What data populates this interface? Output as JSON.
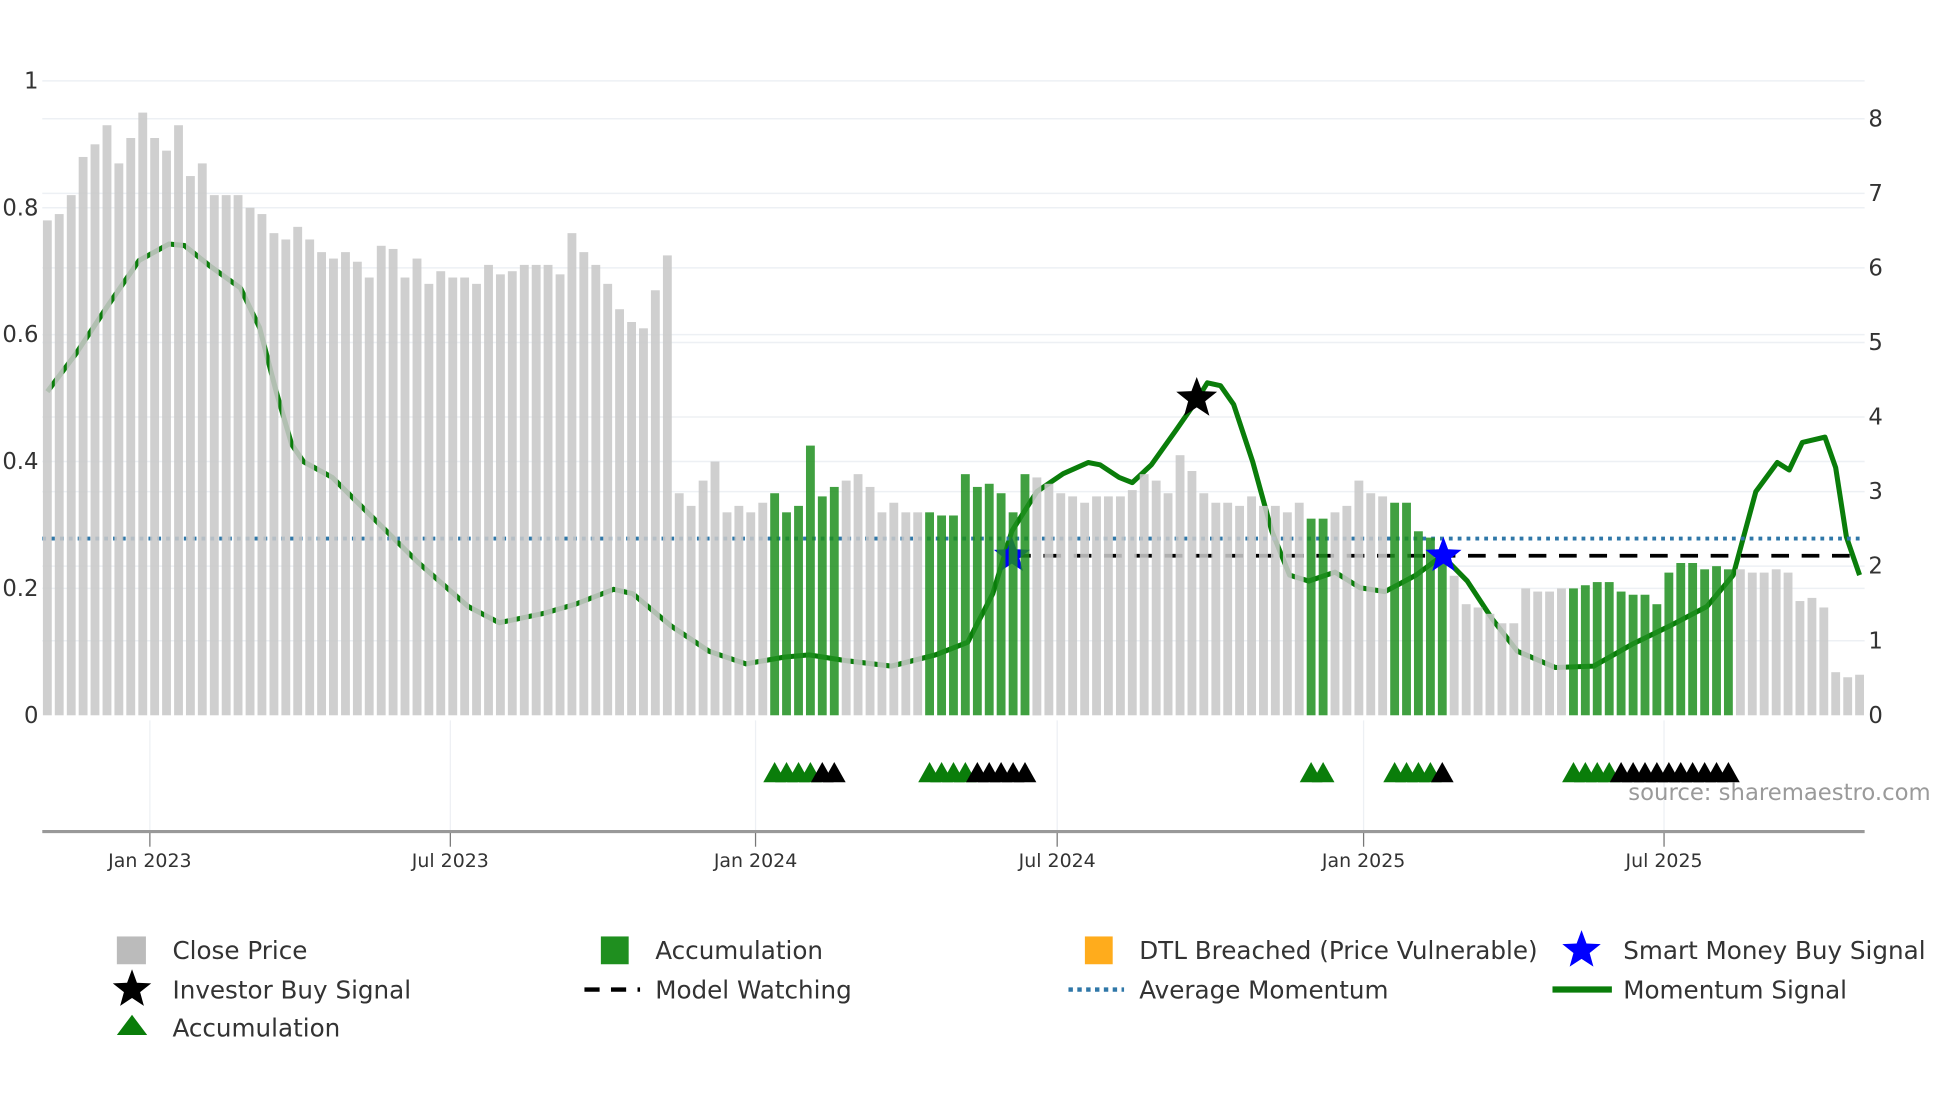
{
  "chart_data": {
    "type": "bar",
    "title": "",
    "colors": {
      "close_price": "#c8c8c8",
      "accumulation_bar": "#1f8f1f",
      "dtl_breached": "#ffac1c",
      "momentum": "#0a7d0a",
      "average_momentum": "#2f77a8",
      "model_watching": "#000000",
      "smart_money_star": "#0000ff",
      "investor_star": "#000000",
      "accumulation_triangle": "#0a7d0a",
      "triangle_secondary": "#000000",
      "grid": "#edf0f4",
      "axis": "#999999"
    },
    "left_axis": {
      "range": [
        0,
        1
      ],
      "ticks": [
        0,
        0.2,
        0.4,
        0.6,
        0.8,
        1
      ],
      "tick_labels": [
        "0",
        "0.2",
        "0.4",
        "0.6",
        "0.8",
        "1"
      ]
    },
    "right_axis": {
      "range": [
        0,
        8
      ],
      "ticks": [
        0,
        1,
        2,
        3,
        4,
        5,
        6,
        7,
        8
      ],
      "tick_labels": [
        "0",
        "1",
        "2",
        "3",
        "4",
        "5",
        "6",
        "7",
        "8"
      ]
    },
    "x_axis": {
      "unit": "week index",
      "tick_weeks": [
        8.6,
        33.8,
        59.4,
        84.7,
        110.4,
        135.6
      ],
      "tick_labels": [
        "Jan 2023",
        "Jul 2023",
        "Jan 2024",
        "Jul 2024",
        "Jan 2025",
        "Jul 2025"
      ]
    },
    "close_price": [
      0.78,
      0.79,
      0.82,
      0.88,
      0.9,
      0.93,
      0.87,
      0.91,
      0.95,
      0.91,
      0.89,
      0.93,
      0.85,
      0.87,
      0.82,
      0.82,
      0.82,
      0.8,
      0.79,
      0.76,
      0.75,
      0.77,
      0.75,
      0.73,
      0.72,
      0.73,
      0.715,
      0.69,
      0.74,
      0.735,
      0.69,
      0.72,
      0.68,
      0.7,
      0.69,
      0.69,
      0.68,
      0.71,
      0.695,
      0.7,
      0.71,
      0.71,
      0.71,
      0.695,
      0.76,
      0.73,
      0.71,
      0.68,
      0.64,
      0.62,
      0.61,
      0.67,
      0.725,
      0.35,
      0.33,
      0.37,
      0.4,
      0.32,
      0.33,
      0.32,
      0.335,
      0.35,
      0.32,
      0.33,
      0.425,
      0.345,
      0.36,
      0.37,
      0.38,
      0.36,
      0.32,
      0.335,
      0.32,
      0.32,
      0.32,
      0.315,
      0.315,
      0.38,
      0.36,
      0.365,
      0.35,
      0.32,
      0.38,
      0.375,
      0.365,
      0.35,
      0.345,
      0.335,
      0.345,
      0.345,
      0.345,
      0.355,
      0.38,
      0.37,
      0.35,
      0.41,
      0.385,
      0.35,
      0.335,
      0.335,
      0.33,
      0.345,
      0.33,
      0.33,
      0.32,
      0.335,
      0.31,
      0.31,
      0.32,
      0.33,
      0.37,
      0.35,
      0.345,
      0.335,
      0.335,
      0.29,
      0.28,
      0.26,
      0.22,
      0.175,
      0.17,
      0.16,
      0.145,
      0.145,
      0.2,
      0.195,
      0.195,
      0.2,
      0.2,
      0.205,
      0.21,
      0.21,
      0.195,
      0.19,
      0.19,
      0.175,
      0.225,
      0.24,
      0.24,
      0.23,
      0.235,
      0.23,
      0.23,
      0.225,
      0.225,
      0.23,
      0.225,
      0.18,
      0.185,
      0.17,
      0.068,
      0.06,
      0.064
    ],
    "accumulation_ranges": [
      [
        61,
        66
      ],
      [
        74,
        82
      ],
      [
        106,
        107
      ],
      [
        113,
        117
      ],
      [
        128,
        141
      ]
    ],
    "momentum_signal": [
      [
        0,
        4.34
      ],
      [
        2.4,
        4.85
      ],
      [
        5.1,
        5.5
      ],
      [
        7.7,
        6.1
      ],
      [
        10.2,
        6.32
      ],
      [
        11.5,
        6.3
      ],
      [
        13.6,
        6.03
      ],
      [
        16.2,
        5.73
      ],
      [
        17.8,
        5.2
      ],
      [
        19.2,
        4.34
      ],
      [
        20.5,
        3.63
      ],
      [
        21.5,
        3.4
      ],
      [
        23.9,
        3.19
      ],
      [
        26.8,
        2.73
      ],
      [
        31.1,
        2.05
      ],
      [
        35.3,
        1.46
      ],
      [
        37.9,
        1.24
      ],
      [
        41.7,
        1.37
      ],
      [
        44.3,
        1.49
      ],
      [
        47.5,
        1.69
      ],
      [
        49.1,
        1.63
      ],
      [
        52.3,
        1.2
      ],
      [
        55.5,
        0.86
      ],
      [
        58.6,
        0.69
      ],
      [
        61.8,
        0.78
      ],
      [
        63.9,
        0.81
      ],
      [
        67.1,
        0.73
      ],
      [
        70.8,
        0.66
      ],
      [
        74.5,
        0.81
      ],
      [
        77.2,
        0.98
      ],
      [
        79.3,
        1.63
      ],
      [
        80.9,
        2.47
      ],
      [
        83.0,
        3.0
      ],
      [
        85.2,
        3.24
      ],
      [
        87.3,
        3.39
      ],
      [
        88.3,
        3.36
      ],
      [
        89.9,
        3.19
      ],
      [
        91.0,
        3.12
      ],
      [
        92.6,
        3.36
      ],
      [
        94.7,
        3.83
      ],
      [
        96.3,
        4.2
      ],
      [
        97.3,
        4.46
      ],
      [
        98.4,
        4.42
      ],
      [
        99.5,
        4.17
      ],
      [
        101.1,
        3.4
      ],
      [
        102.7,
        2.47
      ],
      [
        104.2,
        1.88
      ],
      [
        105.8,
        1.8
      ],
      [
        108.0,
        1.92
      ],
      [
        110.1,
        1.71
      ],
      [
        112.2,
        1.66
      ],
      [
        114.8,
        1.88
      ],
      [
        117.0,
        2.14
      ],
      [
        119.1,
        1.8
      ],
      [
        121.2,
        1.29
      ],
      [
        123.3,
        0.86
      ],
      [
        126.5,
        0.64
      ],
      [
        129.7,
        0.66
      ],
      [
        132.9,
        0.95
      ],
      [
        136.1,
        1.2
      ],
      [
        139.2,
        1.46
      ],
      [
        141.4,
        1.88
      ],
      [
        143.3,
        3.0
      ],
      [
        145.1,
        3.39
      ],
      [
        146.1,
        3.29
      ],
      [
        147.2,
        3.66
      ],
      [
        149.1,
        3.73
      ],
      [
        150.0,
        3.32
      ],
      [
        150.9,
        2.39
      ],
      [
        152.0,
        1.88
      ]
    ],
    "average_momentum": 2.37,
    "model_watching": {
      "value": 2.14,
      "from_week": 81,
      "to_week": 152
    },
    "smart_money_buy_signals": [
      [
        80.9,
        2.14
      ],
      [
        117.1,
        2.14
      ]
    ],
    "investor_buy_signals": [
      [
        96.4,
        4.25
      ]
    ],
    "triangle_markers": {
      "green": [
        61,
        62,
        63,
        64,
        74,
        75,
        76,
        77,
        106,
        107,
        113,
        114,
        115,
        116,
        128,
        129,
        130,
        131
      ],
      "black": [
        65,
        66,
        78,
        79,
        80,
        81,
        82,
        117,
        132,
        133,
        134,
        135,
        136,
        137,
        138,
        139,
        140,
        141
      ]
    },
    "source": "source: sharemaestro.com",
    "legend": {
      "close_price": "Close Price",
      "accumulation_bar": "Accumulation",
      "dtl_breached": "DTL Breached (Price Vulnerable)",
      "smart_money": "Smart Money Buy Signal",
      "investor_buy": "Investor Buy Signal",
      "model_watching": "Model Watching",
      "average_momentum": "Average Momentum",
      "momentum_signal": "Momentum Signal",
      "accumulation_triangle": "Accumulation"
    },
    "legend_placement": "bottom"
  }
}
